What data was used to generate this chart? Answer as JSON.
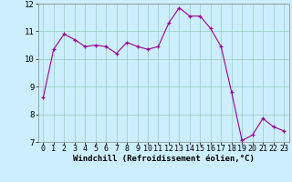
{
  "x": [
    0,
    1,
    2,
    3,
    4,
    5,
    6,
    7,
    8,
    9,
    10,
    11,
    12,
    13,
    14,
    15,
    16,
    17,
    18,
    19,
    20,
    21,
    22,
    23
  ],
  "y": [
    8.6,
    10.35,
    10.9,
    10.7,
    10.45,
    10.5,
    10.45,
    10.2,
    10.6,
    10.45,
    10.35,
    10.45,
    11.3,
    11.85,
    11.55,
    11.55,
    11.1,
    10.45,
    8.8,
    7.05,
    7.25,
    7.85,
    7.55,
    7.4
  ],
  "line_color": "#990099",
  "marker": "+",
  "marker_size": 3,
  "bg_color": "#cceeff",
  "grid_color": "#99ccbb",
  "xlabel": "Windchill (Refroidissement éolien,°C)",
  "xlim": [
    -0.5,
    23.5
  ],
  "ylim": [
    7,
    12
  ],
  "yticks": [
    7,
    8,
    9,
    10,
    11,
    12
  ],
  "xticks": [
    0,
    1,
    2,
    3,
    4,
    5,
    6,
    7,
    8,
    9,
    10,
    11,
    12,
    13,
    14,
    15,
    16,
    17,
    18,
    19,
    20,
    21,
    22,
    23
  ],
  "xlabel_fontsize": 6.5,
  "tick_fontsize": 6.0,
  "ytick_fontsize": 6.5,
  "linewidth": 0.8,
  "markeredgewidth": 0.9
}
